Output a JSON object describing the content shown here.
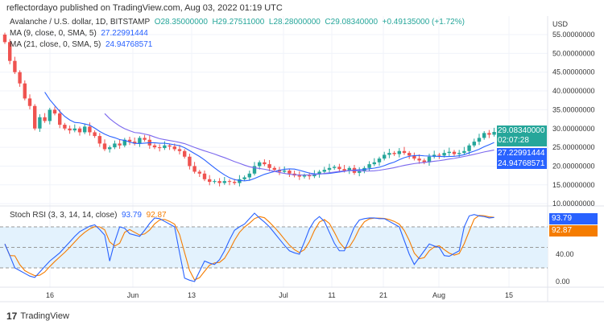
{
  "header": {
    "published": "reflectordayo published on TradingView.com, Aug 03, 2022 01:19 UTC"
  },
  "legend": {
    "symbol": "Avalanche / U.S. dollar, 1D, BITSTAMP",
    "o": "O28.35000000",
    "h": "H29.27511000",
    "l": "L28.28000000",
    "c": "C29.08340000",
    "chg": "+0.49135000 (+1.72%)",
    "ma9_label": "MA (9, close, 0, SMA, 5)",
    "ma9_value": "27.22991444",
    "ma21_label": "MA (21, close, 0, SMA, 5)",
    "ma21_value": "24.94768571",
    "stoch_label": "Stoch RSI (3, 3, 14, 14, close)",
    "stoch_k": "93.79",
    "stoch_d": "92.87"
  },
  "price_axis": {
    "currency": "USD",
    "ticks": [
      "55.00000000",
      "50.00000000",
      "45.00000000",
      "40.00000000",
      "35.00000000",
      "30.00000000",
      "25.00000000",
      "20.00000000",
      "15.00000000",
      "10.00000000"
    ],
    "last_price": "29.08340000",
    "countdown": "02:07:28",
    "ma9_tag": "27.22991444",
    "ma21_tag": "24.94768571"
  },
  "rsi_axis": {
    "ticks": [
      "40.00",
      "0.00"
    ]
  },
  "x_axis": {
    "ticks": [
      "16",
      "Jun",
      "13",
      "Jul",
      "11",
      "21",
      "Aug",
      "15"
    ]
  },
  "footer": {
    "brand": "TradingView"
  },
  "colors": {
    "up": "#26a69a",
    "down": "#ef5350",
    "ma9": "#2962ff",
    "ma21": "#7b68ee",
    "k": "#2962ff",
    "d": "#f57c00",
    "band": "#e3f2fd"
  },
  "chart_data": {
    "type": "candlestick",
    "ylim": [
      10,
      56
    ],
    "close": [
      53,
      48,
      45,
      42,
      38,
      36,
      30,
      33,
      32,
      35,
      34,
      31,
      30,
      29.5,
      30,
      29,
      30.5,
      29,
      28,
      26,
      24.5,
      25,
      26,
      25.5,
      27,
      26.5,
      26,
      27.5,
      27,
      25.5,
      25,
      24.8,
      25.5,
      25.2,
      24.5,
      24,
      22.5,
      20,
      18.5,
      18,
      16.5,
      15.8,
      16,
      15.5,
      16,
      15.8,
      15.5,
      16.5,
      17,
      18,
      20,
      21,
      20.5,
      19.5,
      19,
      18.5,
      18.8,
      18,
      17.5,
      17.2,
      17.5,
      17.3,
      17.8,
      18.5,
      19,
      19.5,
      19.8,
      19.2,
      18.8,
      19.5,
      18.2,
      18.6,
      19.5,
      20.5,
      21,
      22,
      23,
      23.5,
      23.2,
      24,
      23.5,
      22.8,
      22,
      21.5,
      21,
      22.5,
      23,
      22.8,
      23.5,
      23.8,
      23.2,
      23.5,
      24,
      25.5,
      26.5,
      27.5,
      28.8,
      28.35,
      29.0834
    ],
    "stoch_rsi_k": [
      55,
      38,
      20,
      16,
      12,
      8,
      6,
      14,
      22,
      30,
      36,
      42,
      50,
      58,
      66,
      73,
      77,
      81,
      83,
      76,
      68,
      30,
      58,
      80,
      78,
      70,
      68,
      66,
      75,
      85,
      93,
      92,
      88,
      84,
      80,
      42,
      5,
      2,
      0,
      15,
      30,
      27,
      25,
      32,
      45,
      61,
      75,
      80,
      84,
      92,
      100,
      93,
      87,
      80,
      71,
      62,
      53,
      45,
      42,
      40,
      58,
      77,
      89,
      95,
      88,
      72,
      56,
      45,
      45,
      62,
      80,
      90,
      92,
      93,
      93,
      92,
      92,
      88,
      84,
      80,
      60,
      40,
      25,
      35,
      45,
      55,
      52,
      50,
      38,
      37,
      41,
      45,
      80,
      96,
      98,
      96,
      95,
      93,
      93.79
    ],
    "stoch_rsi_bands": [
      20,
      50,
      80
    ]
  }
}
